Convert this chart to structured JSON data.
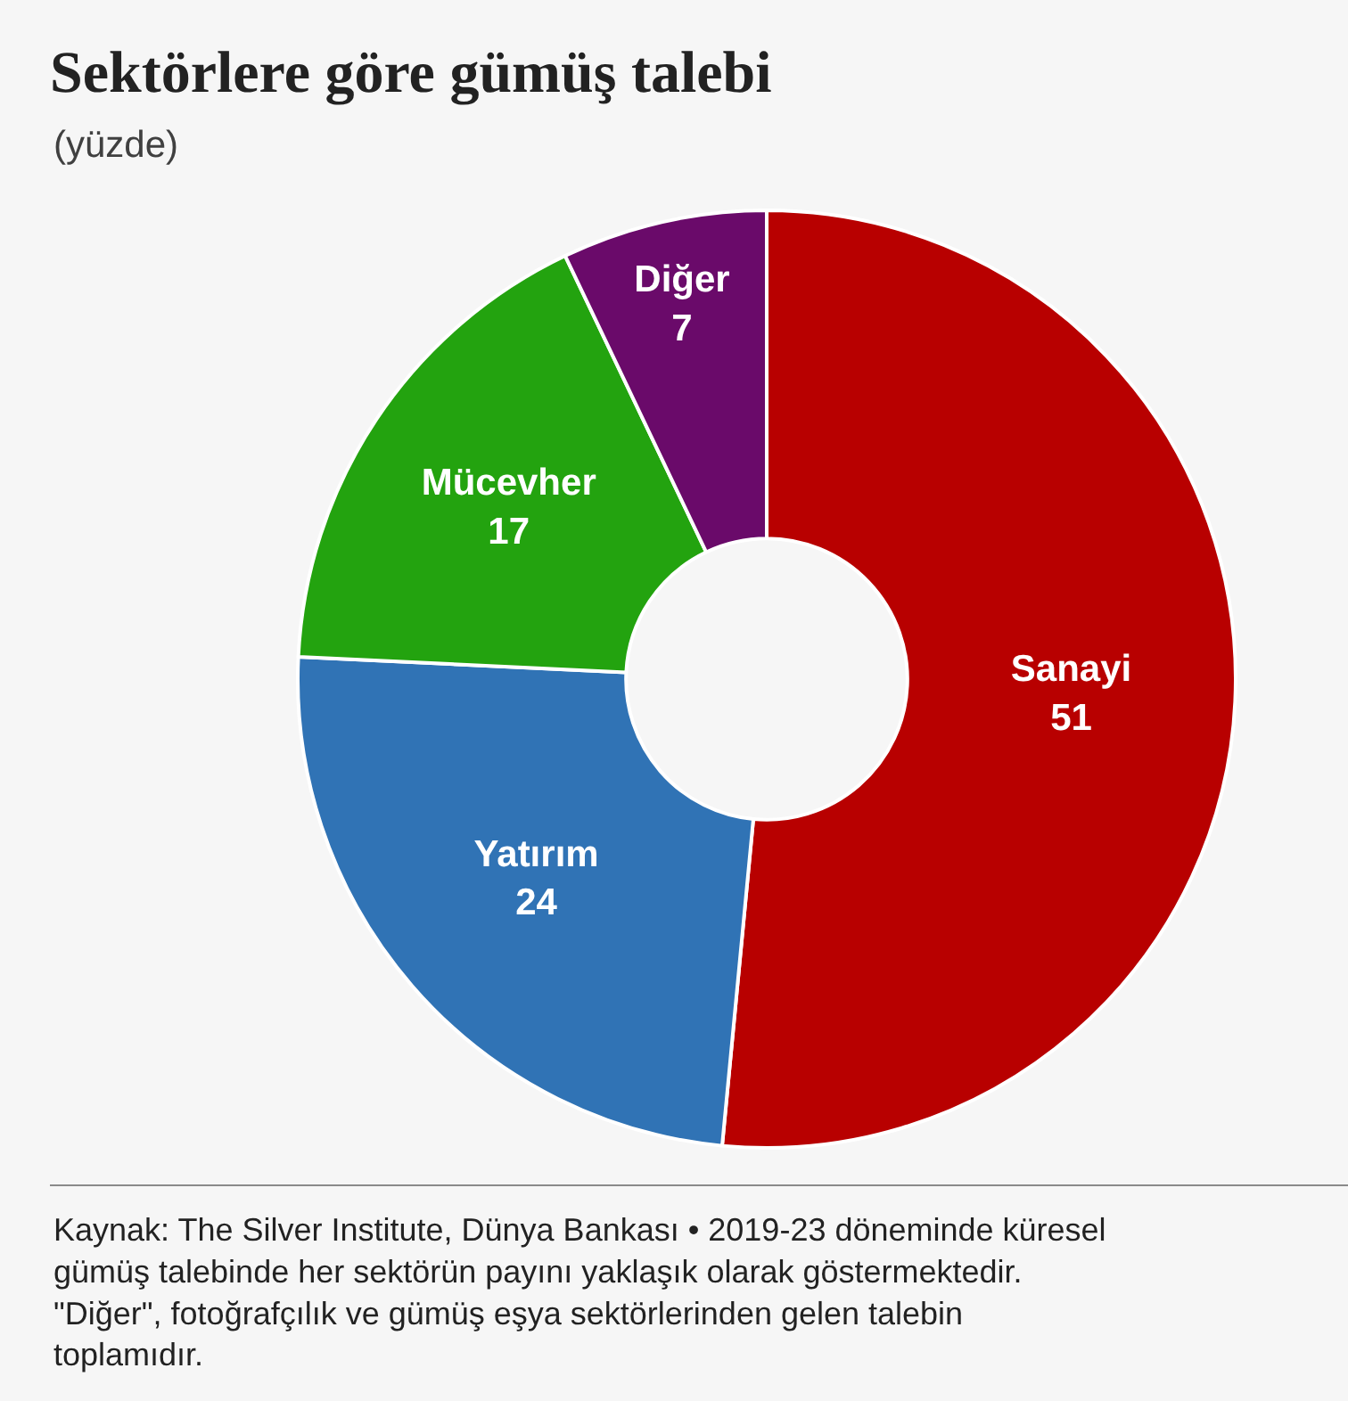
{
  "chart_data": {
    "type": "donut",
    "title": "Sektörlere göre gümüş talebi",
    "subtitle": "(yüzde)",
    "categories": [
      "Sanayi",
      "Yatırım",
      "Mücevher",
      "Diğer"
    ],
    "values": [
      51,
      24,
      17,
      7
    ],
    "colors": [
      "#b80000",
      "#3073b5",
      "#23a30f",
      "#6a0a6a"
    ],
    "data_labels": true,
    "legend": false,
    "annotations": [
      "Kaynak: The Silver Institute, Dünya Bankası • 2019-23 döneminde küresel gümüş talebinde her sektörün payını yaklaşık olarak göstermektedir. \"Diğer\", fotoğrafçılık ve gümüş eşya sektörlerinden gelen talebin toplamıdır."
    ]
  }
}
